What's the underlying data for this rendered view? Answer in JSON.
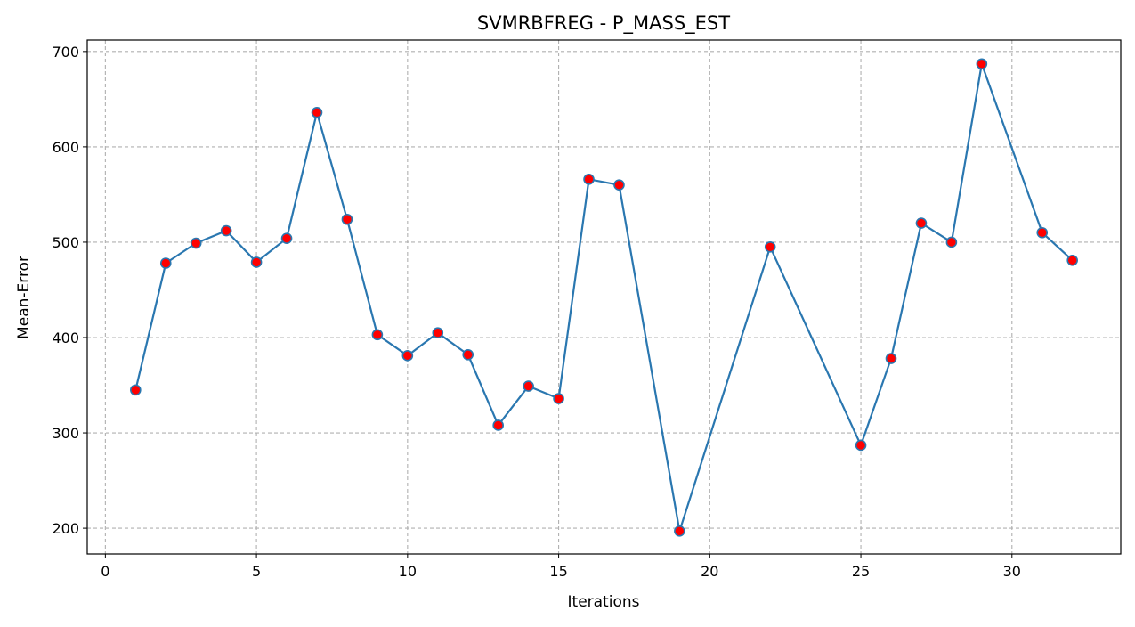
{
  "chart_data": {
    "type": "line",
    "title": "SVMRBFREG - P_MASS_EST",
    "xlabel": "Iterations",
    "ylabel": "Mean-Error",
    "xlim": [
      -0.6,
      33.6
    ],
    "ylim": [
      173,
      712
    ],
    "x_ticks": [
      0,
      5,
      10,
      15,
      20,
      25,
      30
    ],
    "y_ticks": [
      200,
      300,
      400,
      500,
      600,
      700
    ],
    "grid": true,
    "grid_style": "dashed",
    "legend": false,
    "line_color": "#2a77b0",
    "marker_face_color": "#ff0000",
    "marker_edge_color": "#2a77b0",
    "grid_color": "#b0b0b0",
    "series": [
      {
        "x": [
          1,
          2,
          3,
          4,
          5,
          6,
          7,
          8,
          9,
          10,
          11,
          12,
          13,
          14,
          15,
          16,
          17,
          19,
          22,
          25,
          26,
          27,
          28,
          29,
          31,
          32
        ],
        "values": [
          345,
          478,
          499,
          512,
          479,
          504,
          636,
          524,
          403,
          381,
          405,
          382,
          308,
          349,
          336,
          566,
          560,
          197,
          495,
          287,
          378,
          520,
          500,
          687,
          510,
          481
        ]
      }
    ]
  }
}
